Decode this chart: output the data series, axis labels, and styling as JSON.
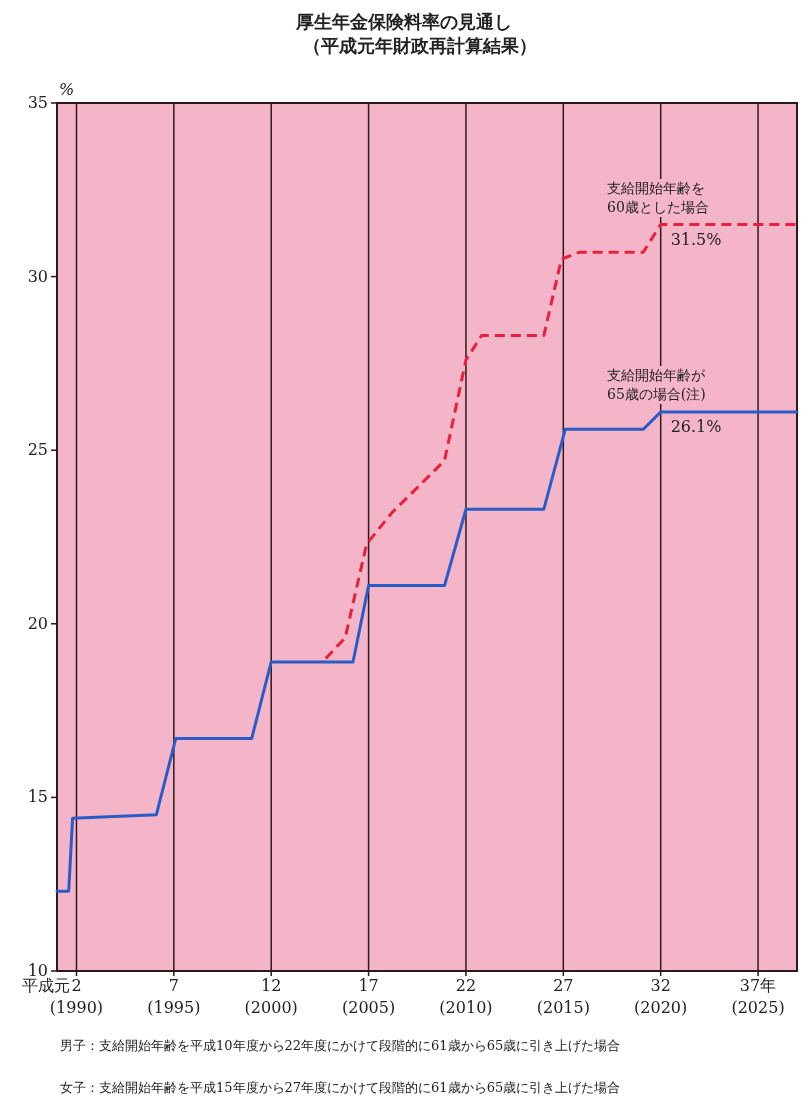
{
  "chart_data": {
    "type": "line",
    "title": "厚生年金保険料率の見通し",
    "subtitle": "（平成元年財政再計算結果）",
    "ylabel": "%",
    "xlim": [
      1,
      39
    ],
    "ylim": [
      10,
      35
    ],
    "xlabel": "平成元",
    "xticks": [
      2,
      7,
      12,
      17,
      22,
      27,
      32,
      {
        "value": 37,
        "label": "37年"
      }
    ],
    "x2lim": [
      1989,
      2027
    ],
    "x2ticks": [
      {
        "value": 1990,
        "label": "(1990)"
      },
      {
        "value": 1995,
        "label": "(1995)"
      },
      {
        "value": 2000,
        "label": "(2000)"
      },
      {
        "value": 2005,
        "label": "(2005)"
      },
      {
        "value": 2010,
        "label": "(2010)"
      },
      {
        "value": 2015,
        "label": "(2015)"
      },
      {
        "value": 2020,
        "label": "(2020)"
      },
      {
        "value": 2025,
        "label": "(2025)"
      }
    ],
    "yticks": [
      10,
      15,
      20,
      25,
      30,
      35
    ],
    "grid": "x",
    "legend": false,
    "marker": "none",
    "series": [
      {
        "name": "支給開始年齢を60歳とした場合",
        "color": "#e8203c",
        "line_style": "dashed",
        "x": [
          14.8,
          15.8,
          16.9,
          18.2,
          20.9,
          22.0,
          22.8,
          26.0,
          26.9,
          27.8,
          31.1,
          32.0,
          39
        ],
        "values": [
          19.0,
          19.6,
          22.3,
          23.2,
          24.7,
          27.6,
          28.3,
          28.3,
          30.5,
          30.7,
          30.7,
          31.5,
          31.5
        ],
        "value_labels": [
          null,
          null,
          null,
          null,
          null,
          null,
          null,
          null,
          null,
          null,
          null,
          "31.5%",
          null
        ]
      },
      {
        "name": "支給開始年齢が65歳の場合(注)",
        "color": "#2a5cc8",
        "line_style": "solid",
        "x": [
          1,
          1.6,
          1.8,
          6.1,
          7.1,
          11.0,
          12.0,
          16.2,
          17.0,
          20.9,
          22.0,
          26.0,
          27.1,
          31.1,
          32.0,
          39
        ],
        "values": [
          12.3,
          12.3,
          14.4,
          14.5,
          16.7,
          16.7,
          18.9,
          18.9,
          21.1,
          21.1,
          23.3,
          23.3,
          25.6,
          25.6,
          26.1,
          26.1
        ],
        "value_labels": [
          null,
          null,
          null,
          null,
          null,
          null,
          null,
          null,
          null,
          null,
          null,
          null,
          null,
          null,
          "26.1%",
          null
        ]
      }
    ],
    "annotations": [
      "男子：支給開始年齢を平成10年度から22年度にかけて段階的に61歳から65歳に引き上げた場合",
      "女子：支給開始年齢を平成15年度から27年度にかけて段階的に61歳から65歳に引き上げた場合"
    ]
  }
}
